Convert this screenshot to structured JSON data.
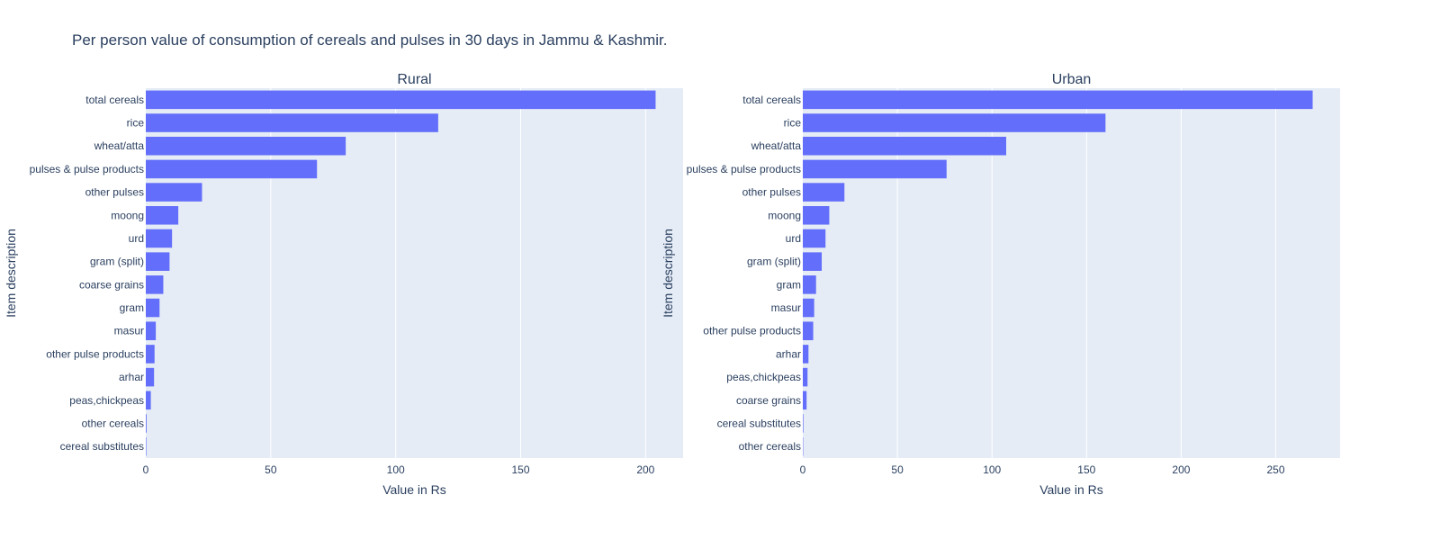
{
  "chart_title": "Per person value of consumption of cereals and pulses in 30 days in Jammu & Kashmir.",
  "colors": {
    "bar": "#636efa",
    "plot_bg": "#e5ecf6",
    "grid": "#ffffff",
    "text": "#2a3f5f"
  },
  "chart_data": [
    {
      "type": "bar",
      "orientation": "horizontal",
      "title": "Rural",
      "xlabel": "Value in Rs",
      "ylabel": "Item description",
      "xlim": [
        0,
        215
      ],
      "xticks": [
        0,
        50,
        100,
        150,
        200
      ],
      "grid": true,
      "categories": [
        "total cereals",
        "rice",
        "wheat/atta",
        "pulses & pulse products",
        "other pulses",
        "moong",
        "urd",
        "gram (split)",
        "coarse grains",
        "gram",
        "masur",
        "other pulse products",
        "arhar",
        "peas,chickpeas",
        "other cereals",
        "cereal substitutes"
      ],
      "values": [
        204,
        117,
        80,
        68.5,
        22.5,
        13,
        10.5,
        9.5,
        7,
        5.5,
        4,
        3.5,
        3.3,
        2,
        0.3,
        0.2
      ]
    },
    {
      "type": "bar",
      "orientation": "horizontal",
      "title": "Urban",
      "xlabel": "Value in Rs",
      "ylabel": "Item description",
      "xlim": [
        0,
        284
      ],
      "xticks": [
        0,
        50,
        100,
        150,
        200,
        250
      ],
      "grid": true,
      "categories": [
        "total cereals",
        "rice",
        "wheat/atta",
        "pulses & pulse products",
        "other pulses",
        "moong",
        "urd",
        "gram (split)",
        "gram",
        "masur",
        "other pulse products",
        "arhar",
        "peas,chickpeas",
        "coarse grains",
        "cereal substitutes",
        "other cereals"
      ],
      "values": [
        269.5,
        160,
        107.5,
        76,
        22,
        14,
        12,
        10,
        7,
        6,
        5.5,
        3,
        2.5,
        2,
        0.3,
        0.2
      ]
    }
  ]
}
